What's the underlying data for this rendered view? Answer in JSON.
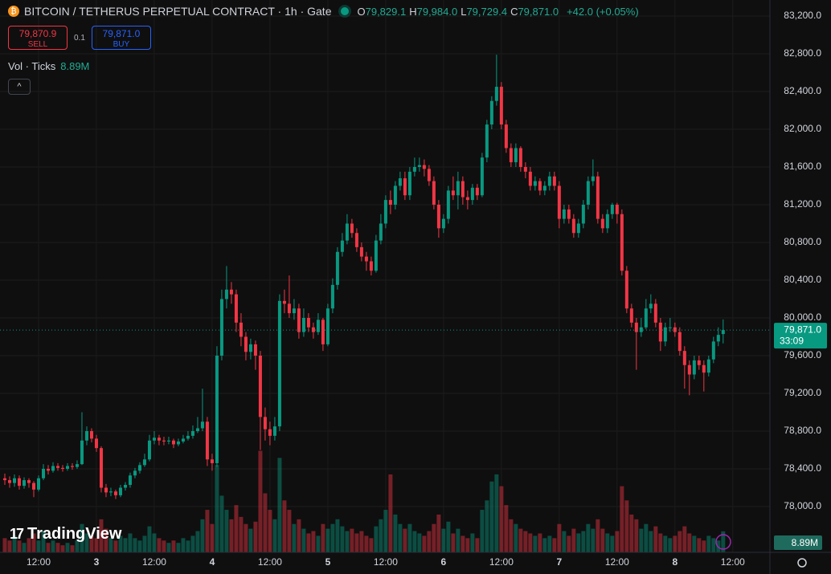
{
  "chart_data": {
    "type": "candlestick",
    "title": "BITCOIN / TETHERUS PERPETUAL CONTRACT · 1h · Gate",
    "ohlc_legend": [
      {
        "key": "O",
        "label": "79,829.1"
      },
      {
        "key": "H",
        "label": "79,984.0"
      },
      {
        "key": "L",
        "label": "79,729.4"
      },
      {
        "key": "C",
        "label": "79,871.0"
      }
    ],
    "change_label": "+42.0 (+0.05%)",
    "sell_price": "79,870.9",
    "sell_label": "SELL",
    "quantity": "0.1",
    "buy_price": "79,871.0",
    "buy_label": "BUY",
    "volume_title": "Vol · Ticks",
    "volume_label": "8.89M",
    "last_price_label": "79,871.0",
    "countdown": "33:09",
    "brand": "TradingView",
    "up_color": "#089981",
    "down_color": "#f23645",
    "ylim": [
      77515,
      83370
    ],
    "yticks": [
      {
        "value": 83200,
        "label": "83,200.0"
      },
      {
        "value": 82800,
        "label": "82,800.0"
      },
      {
        "value": 82400,
        "label": "82,400.0"
      },
      {
        "value": 82000,
        "label": "82,000.0"
      },
      {
        "value": 81600,
        "label": "81,600.0"
      },
      {
        "value": 81200,
        "label": "81,200.0"
      },
      {
        "value": 80800,
        "label": "80,800.0"
      },
      {
        "value": 80400,
        "label": "80,400.0"
      },
      {
        "value": 80000,
        "label": "80,000.0"
      },
      {
        "value": 79600,
        "label": "79,600.0"
      },
      {
        "value": 79200,
        "label": "79,200.0"
      },
      {
        "value": 78800,
        "label": "78,800.0"
      },
      {
        "value": 78400,
        "label": "78,400.0"
      },
      {
        "value": 78000,
        "label": "78,000.0"
      }
    ],
    "xlim": [
      -1,
      158.7
    ],
    "xticks": [
      {
        "value": 7,
        "label": "12:00"
      },
      {
        "value": 19,
        "label": "3"
      },
      {
        "value": 31,
        "label": "12:00"
      },
      {
        "value": 43,
        "label": "4"
      },
      {
        "value": 55,
        "label": "12:00"
      },
      {
        "value": 67,
        "label": "5"
      },
      {
        "value": 79,
        "label": "12:00"
      },
      {
        "value": 91,
        "label": "6"
      },
      {
        "value": 103,
        "label": "12:00"
      },
      {
        "value": 115,
        "label": "7"
      },
      {
        "value": 127,
        "label": "12:00"
      },
      {
        "value": 139,
        "label": "8"
      },
      {
        "value": 151,
        "label": "12:00"
      }
    ],
    "volume_lim": [
      0,
      68
    ],
    "candles": [
      [
        78300,
        78350,
        78230,
        78280
      ],
      [
        78280,
        78320,
        78200,
        78250
      ],
      [
        78250,
        78340,
        78210,
        78300
      ],
      [
        78300,
        78330,
        78180,
        78220
      ],
      [
        78220,
        78310,
        78190,
        78280
      ],
      [
        78280,
        78300,
        78200,
        78250
      ],
      [
        78250,
        78270,
        78100,
        78180
      ],
      [
        78180,
        78330,
        78160,
        78300
      ],
      [
        78300,
        78450,
        78280,
        78400
      ],
      [
        78400,
        78440,
        78340,
        78380
      ],
      [
        78380,
        78470,
        78360,
        78430
      ],
      [
        78430,
        78460,
        78380,
        78410
      ],
      [
        78410,
        78440,
        78370,
        78400
      ],
      [
        78400,
        78460,
        78380,
        78430
      ],
      [
        78430,
        78460,
        78390,
        78420
      ],
      [
        78420,
        78490,
        78400,
        78450
      ],
      [
        78450,
        79000,
        78440,
        78700
      ],
      [
        78700,
        78850,
        78650,
        78800
      ],
      [
        78800,
        78830,
        78680,
        78720
      ],
      [
        78720,
        78760,
        78580,
        78620
      ],
      [
        78620,
        78640,
        78150,
        78200
      ],
      [
        78200,
        78240,
        78100,
        78150
      ],
      [
        78150,
        78200,
        78110,
        78160
      ],
      [
        78160,
        78180,
        78080,
        78120
      ],
      [
        78120,
        78230,
        78100,
        78200
      ],
      [
        78200,
        78260,
        78170,
        78230
      ],
      [
        78230,
        78360,
        78200,
        78330
      ],
      [
        78330,
        78410,
        78300,
        78380
      ],
      [
        78380,
        78470,
        78350,
        78440
      ],
      [
        78440,
        78560,
        78420,
        78500
      ],
      [
        78500,
        78760,
        78480,
        78700
      ],
      [
        78700,
        78800,
        78660,
        78730
      ],
      [
        78730,
        78760,
        78650,
        78700
      ],
      [
        78700,
        78740,
        78650,
        78690
      ],
      [
        78690,
        78740,
        78660,
        78700
      ],
      [
        78700,
        78720,
        78620,
        78660
      ],
      [
        78660,
        78720,
        78640,
        78690
      ],
      [
        78690,
        78760,
        78670,
        78720
      ],
      [
        78720,
        78800,
        78700,
        78750
      ],
      [
        78750,
        78860,
        78720,
        78800
      ],
      [
        78800,
        78950,
        78780,
        78830
      ],
      [
        78830,
        79250,
        78800,
        78900
      ],
      [
        78900,
        78950,
        78430,
        78500
      ],
      [
        78500,
        78560,
        78380,
        78460
      ],
      [
        78460,
        79700,
        78420,
        79600
      ],
      [
        79600,
        80300,
        79550,
        80200
      ],
      [
        80200,
        80550,
        80100,
        80300
      ],
      [
        80300,
        80380,
        80150,
        80250
      ],
      [
        80250,
        80300,
        79850,
        79950
      ],
      [
        79950,
        80050,
        79700,
        79800
      ],
      [
        79800,
        79850,
        79550,
        79640
      ],
      [
        79640,
        79780,
        79560,
        79720
      ],
      [
        79720,
        79760,
        79450,
        79600
      ],
      [
        79600,
        79650,
        78600,
        78950
      ],
      [
        78950,
        79050,
        78700,
        78820
      ],
      [
        78820,
        78900,
        78650,
        78750
      ],
      [
        78750,
        78950,
        78700,
        78850
      ],
      [
        78850,
        80250,
        78800,
        80180
      ],
      [
        80180,
        80300,
        80050,
        80150
      ],
      [
        80150,
        80450,
        80000,
        80050
      ],
      [
        80050,
        80200,
        79980,
        80100
      ],
      [
        80100,
        80150,
        79780,
        79850
      ],
      [
        79850,
        80100,
        79800,
        80000
      ],
      [
        80000,
        80050,
        79850,
        79900
      ],
      [
        79900,
        79950,
        79780,
        79850
      ],
      [
        79850,
        80050,
        79820,
        79980
      ],
      [
        79980,
        80000,
        79650,
        79720
      ],
      [
        79720,
        80150,
        79700,
        80100
      ],
      [
        80100,
        80420,
        80050,
        80350
      ],
      [
        80350,
        80750,
        80300,
        80700
      ],
      [
        80700,
        80900,
        80650,
        80820
      ],
      [
        80820,
        81100,
        80780,
        81000
      ],
      [
        81000,
        81050,
        80850,
        80900
      ],
      [
        80900,
        80950,
        80700,
        80750
      ],
      [
        80750,
        80800,
        80600,
        80650
      ],
      [
        80650,
        80700,
        80500,
        80600
      ],
      [
        80600,
        80650,
        80450,
        80500
      ],
      [
        80500,
        80880,
        80480,
        80820
      ],
      [
        80820,
        81100,
        80780,
        81000
      ],
      [
        81000,
        81300,
        80950,
        81250
      ],
      [
        81250,
        81350,
        81100,
        81200
      ],
      [
        81200,
        81450,
        81150,
        81400
      ],
      [
        81400,
        81550,
        81350,
        81480
      ],
      [
        81480,
        81550,
        81250,
        81300
      ],
      [
        81300,
        81600,
        81250,
        81550
      ],
      [
        81550,
        81700,
        81500,
        81600
      ],
      [
        81600,
        81700,
        81550,
        81620
      ],
      [
        81620,
        81680,
        81500,
        81580
      ],
      [
        81580,
        81620,
        81400,
        81450
      ],
      [
        81450,
        81500,
        81150,
        81200
      ],
      [
        81200,
        81250,
        80850,
        80950
      ],
      [
        80950,
        81100,
        80900,
        81050
      ],
      [
        81050,
        81400,
        81000,
        81350
      ],
      [
        81350,
        81500,
        81250,
        81300
      ],
      [
        81300,
        81550,
        81150,
        81450
      ],
      [
        81450,
        81500,
        81200,
        81280
      ],
      [
        81280,
        81350,
        81150,
        81250
      ],
      [
        81250,
        81420,
        81200,
        81380
      ],
      [
        81380,
        81420,
        81250,
        81300
      ],
      [
        81300,
        81750,
        81280,
        81700
      ],
      [
        81700,
        82100,
        81650,
        82050
      ],
      [
        82050,
        82350,
        82000,
        82300
      ],
      [
        82300,
        82790,
        82250,
        82450
      ],
      [
        82450,
        82500,
        82000,
        82050
      ],
      [
        82050,
        82100,
        81750,
        81800
      ],
      [
        81800,
        81850,
        81600,
        81650
      ],
      [
        81650,
        81850,
        81600,
        81800
      ],
      [
        81800,
        81820,
        81550,
        81600
      ],
      [
        81600,
        81650,
        81480,
        81550
      ],
      [
        81550,
        81600,
        81350,
        81400
      ],
      [
        81400,
        81500,
        81350,
        81450
      ],
      [
        81450,
        81480,
        81300,
        81350
      ],
      [
        81350,
        81450,
        81300,
        81400
      ],
      [
        81400,
        81550,
        81350,
        81500
      ],
      [
        81500,
        81550,
        81350,
        81400
      ],
      [
        81400,
        81450,
        80950,
        81050
      ],
      [
        81050,
        81200,
        81000,
        81150
      ],
      [
        81150,
        81200,
        81000,
        81050
      ],
      [
        81050,
        81100,
        80850,
        80900
      ],
      [
        80900,
        81050,
        80850,
        81000
      ],
      [
        81000,
        81250,
        80950,
        81200
      ],
      [
        81200,
        81500,
        81150,
        81450
      ],
      [
        81450,
        81680,
        81400,
        81500
      ],
      [
        81500,
        81550,
        81000,
        81050
      ],
      [
        81050,
        81100,
        80900,
        80950
      ],
      [
        80950,
        81150,
        80900,
        81100
      ],
      [
        81100,
        81220,
        81050,
        81200
      ],
      [
        81200,
        81220,
        81000,
        81100
      ],
      [
        81100,
        81150,
        80450,
        80500
      ],
      [
        80500,
        80550,
        80050,
        80100
      ],
      [
        80100,
        80150,
        79900,
        79950
      ],
      [
        79950,
        80000,
        79450,
        79850
      ],
      [
        79850,
        80000,
        79800,
        79900
      ],
      [
        79900,
        80200,
        79880,
        80100
      ],
      [
        80100,
        80250,
        80050,
        80150
      ],
      [
        80150,
        80200,
        79900,
        79950
      ],
      [
        79950,
        80000,
        79650,
        79750
      ],
      [
        79750,
        79950,
        79700,
        79900
      ],
      [
        79900,
        80000,
        79850,
        79900
      ],
      [
        79900,
        79950,
        79800,
        79850
      ],
      [
        79850,
        79900,
        79600,
        79650
      ],
      [
        79650,
        79700,
        79250,
        79500
      ],
      [
        79500,
        79550,
        79180,
        79400
      ],
      [
        79400,
        79600,
        79350,
        79550
      ],
      [
        79550,
        79600,
        79450,
        79500
      ],
      [
        79500,
        79550,
        79220,
        79420
      ],
      [
        79420,
        79600,
        79380,
        79560
      ],
      [
        79560,
        79800,
        79520,
        79750
      ],
      [
        79750,
        79900,
        79700,
        79820
      ],
      [
        79829.1,
        79984.0,
        79729.4,
        79871.0
      ]
    ],
    "volumes": [
      6,
      5,
      7,
      5,
      4,
      6,
      8,
      5,
      9,
      4,
      5,
      4,
      3,
      4,
      3,
      5,
      12,
      8,
      7,
      6,
      14,
      10,
      6,
      5,
      7,
      6,
      8,
      6,
      5,
      7,
      11,
      8,
      6,
      5,
      4,
      5,
      4,
      6,
      5,
      7,
      9,
      14,
      18,
      12,
      37,
      24,
      18,
      14,
      20,
      15,
      12,
      10,
      13,
      43,
      25,
      18,
      14,
      40,
      22,
      18,
      12,
      14,
      10,
      8,
      9,
      7,
      12,
      10,
      12,
      14,
      11,
      9,
      10,
      8,
      9,
      7,
      6,
      11,
      14,
      18,
      33,
      16,
      12,
      10,
      12,
      9,
      8,
      7,
      9,
      12,
      16,
      10,
      13,
      8,
      10,
      7,
      6,
      8,
      6,
      18,
      22,
      30,
      33,
      28,
      20,
      14,
      12,
      10,
      9,
      8,
      7,
      8,
      6,
      7,
      6,
      12,
      9,
      7,
      10,
      8,
      9,
      12,
      10,
      14,
      10,
      8,
      7,
      9,
      28,
      22,
      16,
      14,
      10,
      12,
      9,
      11,
      8,
      7,
      6,
      7,
      9,
      11,
      8,
      7,
      6,
      5,
      7,
      6,
      5,
      8.89
    ]
  }
}
